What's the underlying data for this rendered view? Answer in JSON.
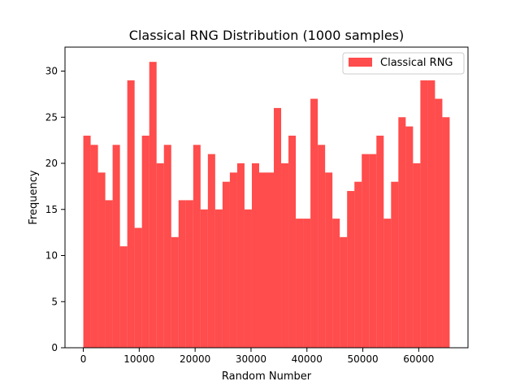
{
  "chart_data": {
    "type": "bar",
    "title": "Classical RNG Distribution (1000 samples)",
    "xlabel": "Random Number",
    "ylabel": "Frequency",
    "legend": {
      "label": "Classical RNG",
      "placement": "top-right"
    },
    "color": "#ff0000",
    "opacity": 0.7,
    "grid": false,
    "xlim": [
      -3277,
      68813
    ],
    "ylim": [
      0,
      32.6
    ],
    "xticks": [
      0,
      10000,
      20000,
      30000,
      40000,
      50000,
      60000
    ],
    "xtick_labels": [
      "0",
      "10000",
      "20000",
      "30000",
      "40000",
      "50000",
      "60000"
    ],
    "yticks": [
      0,
      5,
      10,
      15,
      20,
      25,
      30
    ],
    "ytick_labels": [
      "0",
      "5",
      "10",
      "15",
      "20",
      "25",
      "30"
    ],
    "bin_start": 0,
    "bin_end": 65535,
    "bins": 50,
    "values": [
      23,
      22,
      19,
      16,
      22,
      11,
      29,
      13,
      23,
      31,
      20,
      22,
      12,
      16,
      16,
      22,
      15,
      21,
      15,
      18,
      19,
      20,
      15,
      20,
      19,
      19,
      26,
      20,
      23,
      14,
      14,
      27,
      22,
      19,
      14,
      12,
      17,
      18,
      21,
      21,
      23,
      14,
      18,
      25,
      24,
      20,
      29,
      29,
      27,
      25
    ]
  }
}
